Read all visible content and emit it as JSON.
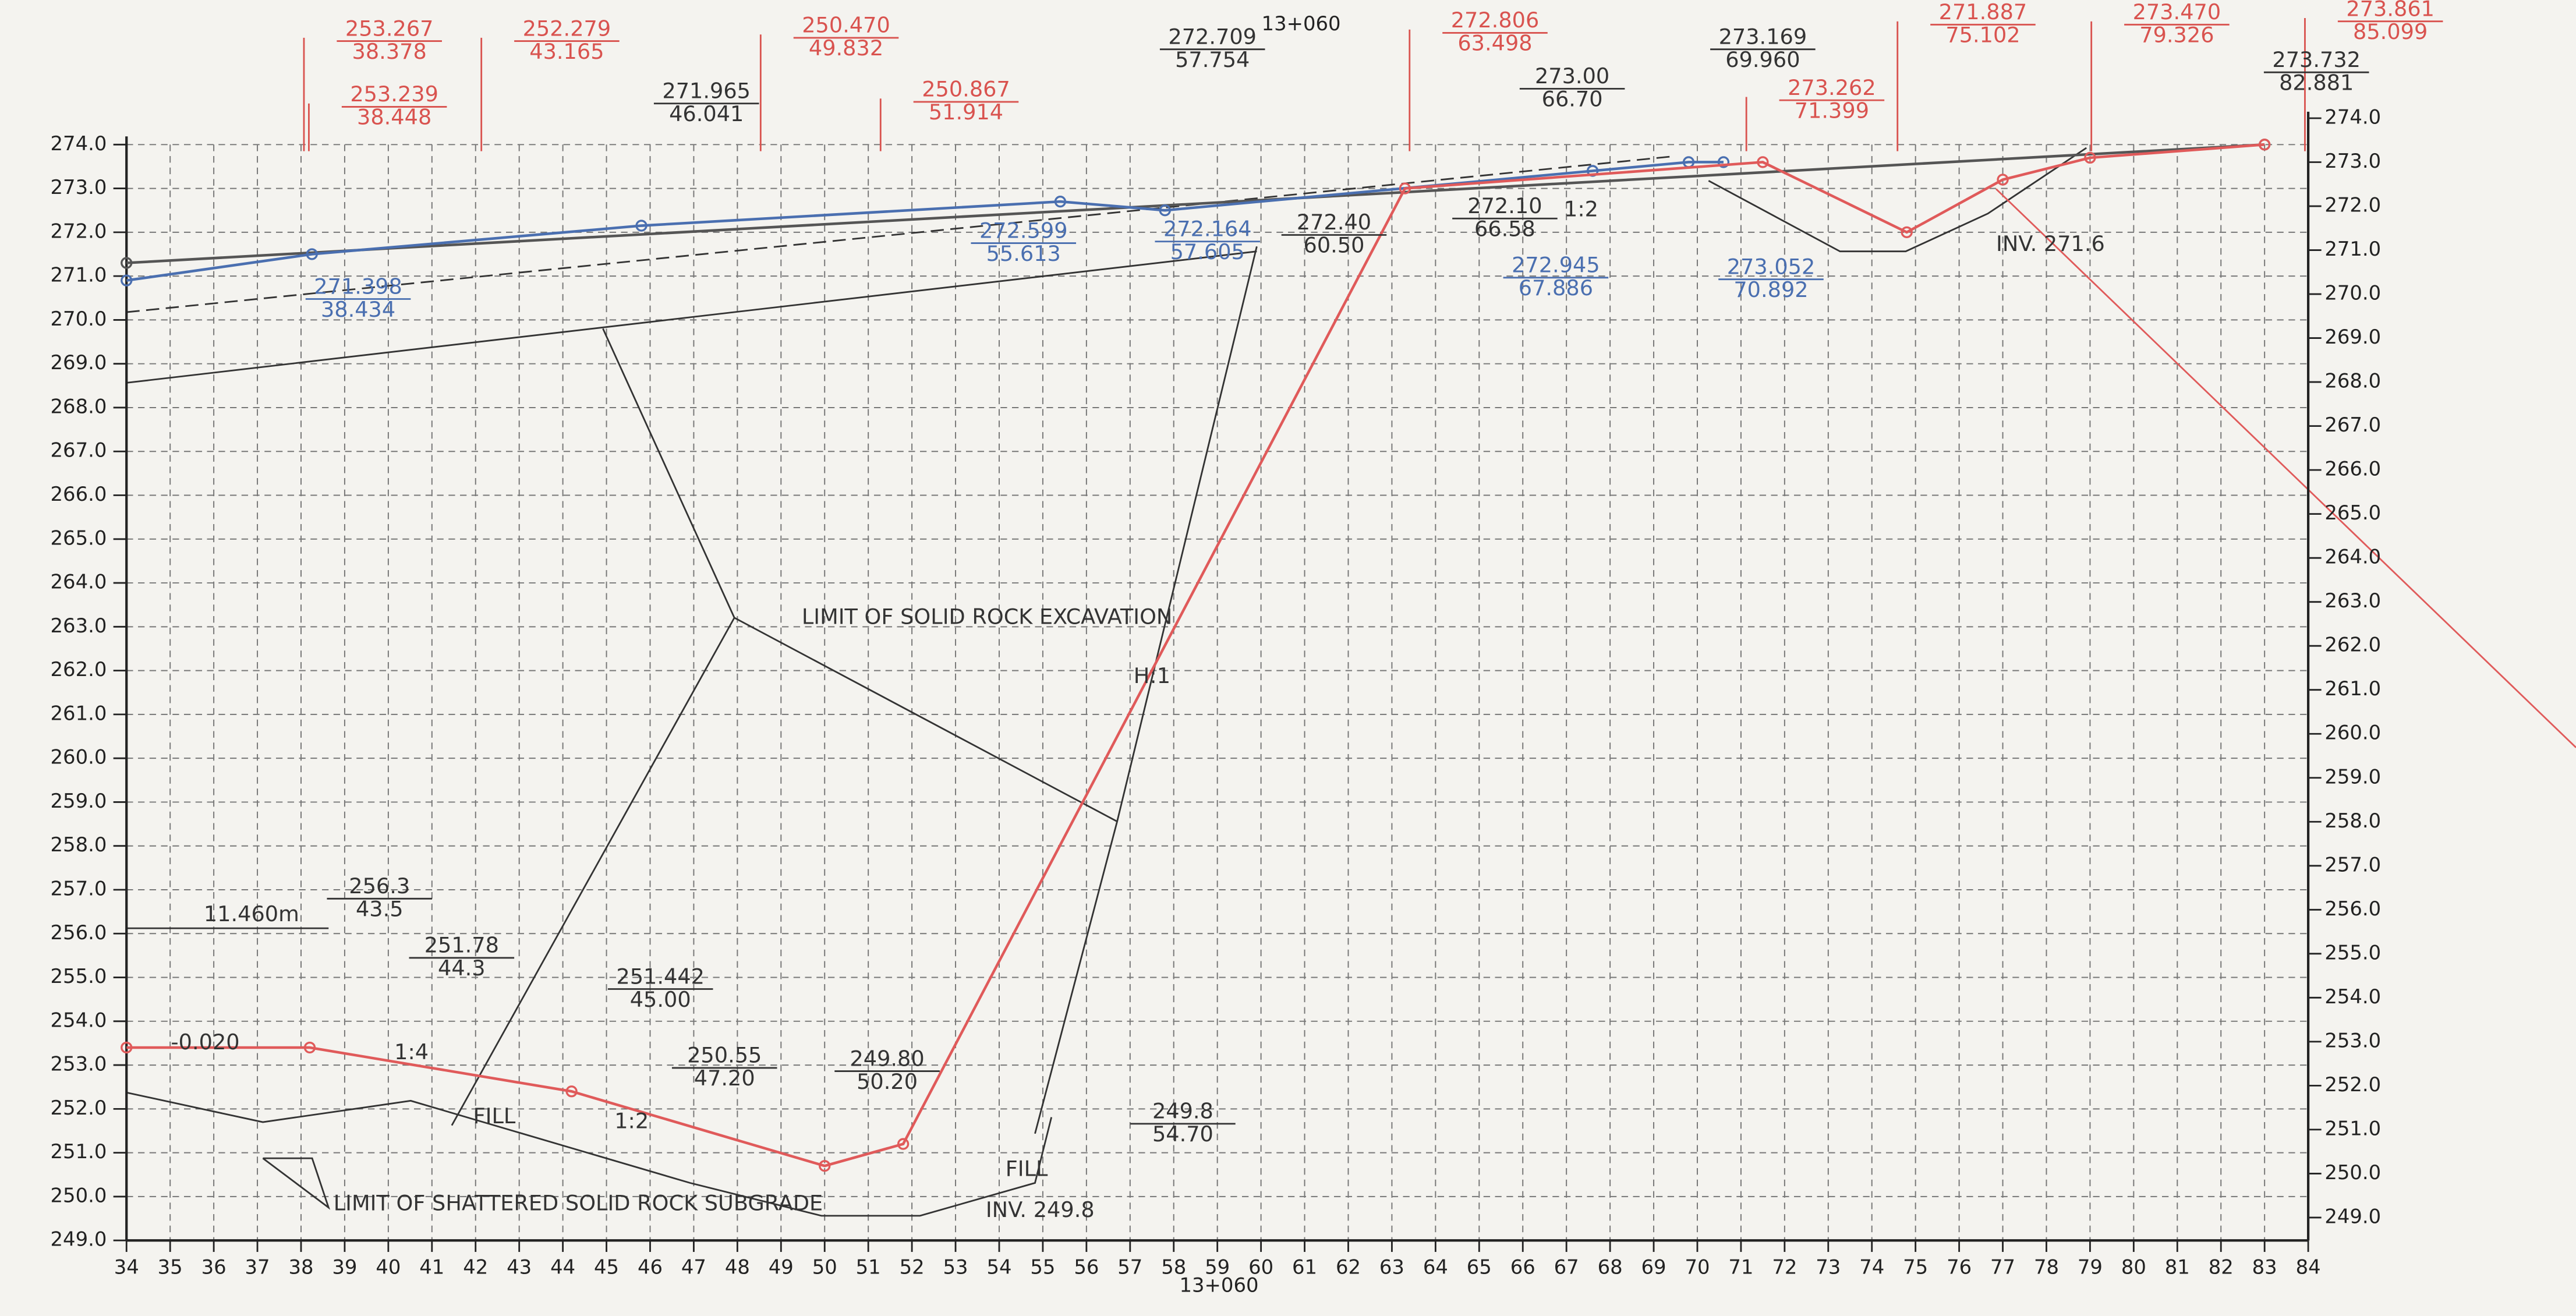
{
  "chart_data": {
    "type": "line",
    "title": "13+060",
    "xlabel": "13+060",
    "xlim": [
      34,
      84
    ],
    "xticks": [
      34,
      35,
      36,
      37,
      38,
      39,
      40,
      41,
      42,
      43,
      44,
      45,
      46,
      47,
      48,
      49,
      50,
      51,
      52,
      53,
      54,
      55,
      56,
      57,
      58,
      59,
      60,
      61,
      62,
      63,
      64,
      65,
      66,
      67,
      68,
      69,
      70,
      71,
      72,
      73,
      74,
      75,
      76,
      77,
      78,
      79,
      80,
      81,
      82,
      83,
      84
    ],
    "ylim": [
      249,
      274
    ],
    "yticks": [
      {
        "value": 249,
        "label": "249.0"
      },
      {
        "value": 250,
        "label": "250.0"
      },
      {
        "value": 251,
        "label": "251.0"
      },
      {
        "value": 252,
        "label": "252.0"
      },
      {
        "value": 253,
        "label": "253.0"
      },
      {
        "value": 254,
        "label": "254.0"
      },
      {
        "value": 255,
        "label": "255.0"
      },
      {
        "value": 256,
        "label": "256.0"
      },
      {
        "value": 257,
        "label": "257.0"
      },
      {
        "value": 258,
        "label": "258.0"
      },
      {
        "value": 259,
        "label": "259.0"
      },
      {
        "value": 260,
        "label": "260.0"
      },
      {
        "value": 261,
        "label": "261.0"
      },
      {
        "value": 262,
        "label": "262.0"
      },
      {
        "value": 263,
        "label": "263.0"
      },
      {
        "value": 264,
        "label": "264.0"
      },
      {
        "value": 265,
        "label": "265.0"
      },
      {
        "value": 266,
        "label": "266.0"
      },
      {
        "value": 267,
        "label": "267.0"
      },
      {
        "value": 268,
        "label": "268.0"
      },
      {
        "value": 269,
        "label": "269.0"
      },
      {
        "value": 270,
        "label": "270.0"
      },
      {
        "value": 271,
        "label": "271.0"
      },
      {
        "value": 272,
        "label": "272.0"
      },
      {
        "value": 273,
        "label": "273.0"
      },
      {
        "value": 274,
        "label": "274.0"
      }
    ],
    "y2lim": [
      248.48,
      273.4
    ],
    "y2ticks": [
      {
        "value": 249,
        "label": "249.0"
      },
      {
        "value": 250,
        "label": "250.0"
      },
      {
        "value": 251,
        "label": "251.0"
      },
      {
        "value": 252,
        "label": "252.0"
      },
      {
        "value": 253,
        "label": "253.0"
      },
      {
        "value": 254,
        "label": "254.0"
      },
      {
        "value": 255,
        "label": "255.0"
      },
      {
        "value": 256,
        "label": "256.0"
      },
      {
        "value": 257,
        "label": "257.0"
      },
      {
        "value": 258,
        "label": "258.0"
      },
      {
        "value": 259,
        "label": "259.0"
      },
      {
        "value": 260,
        "label": "260.0"
      },
      {
        "value": 261,
        "label": "261.0"
      },
      {
        "value": 262,
        "label": "262.0"
      },
      {
        "value": 263,
        "label": "263.0"
      },
      {
        "value": 264,
        "label": "264.0"
      },
      {
        "value": 265,
        "label": "265.0"
      },
      {
        "value": 266,
        "label": "266.0"
      },
      {
        "value": 267,
        "label": "267.0"
      },
      {
        "value": 268,
        "label": "268.0"
      },
      {
        "value": 269,
        "label": "269.0"
      },
      {
        "value": 270,
        "label": "270.0"
      },
      {
        "value": 271,
        "label": "271.0"
      },
      {
        "value": 272,
        "label": "272.0"
      },
      {
        "value": 273,
        "label": "273.0"
      },
      {
        "value": 274,
        "label": "274.0"
      }
    ],
    "grid": true,
    "series": [
      {
        "color": "#555555",
        "x": [
          34,
          83
        ],
        "values": [
          271.3,
          274.0
        ]
      },
      {
        "color": "#4a6fb0",
        "x": [
          34,
          38.25,
          45.8,
          55.4,
          57.8,
          67.6,
          69.8,
          70.6
        ],
        "values": [
          270.9,
          271.5,
          272.15,
          272.7,
          272.5,
          273.4,
          273.6,
          273.6
        ]
      },
      {
        "color": "#e05a5a",
        "x": [
          34,
          38.2,
          44.2,
          50,
          51.8,
          63.3,
          71.5,
          74.8,
          77,
          79,
          83
        ],
        "values": [
          253.4,
          253.4,
          252.4,
          250.7,
          251.2,
          273.0,
          273.6,
          272.0,
          273.2,
          273.7,
          274.0
        ]
      }
    ],
    "annotations": [
      {
        "color": "#d9534f",
        "labels": [
          {
            "top": "253.267",
            "bottom": "38.378"
          },
          {
            "top": "253.239",
            "bottom": "38.448"
          },
          {
            "top": "252.279",
            "bottom": "43.165"
          },
          {
            "top": "250.470",
            "bottom": "49.832"
          },
          {
            "top": "250.867",
            "bottom": "51.914"
          },
          {
            "top": "272.806",
            "bottom": "63.498"
          },
          {
            "top": "273.262",
            "bottom": "71.399"
          },
          {
            "top": "271.887",
            "bottom": "75.102"
          },
          {
            "top": "273.470",
            "bottom": "79.326"
          },
          {
            "top": "273.861",
            "bottom": "85.099"
          }
        ]
      },
      {
        "color": "#333333",
        "labels": [
          {
            "top": "271.965",
            "bottom": "46.041"
          },
          {
            "top": "272.709",
            "bottom": "57.754"
          },
          {
            "top": "273.00",
            "bottom": "66.70"
          },
          {
            "top": "273.169",
            "bottom": "69.960"
          },
          {
            "top": "273.732",
            "bottom": "82.881"
          },
          {
            "top": "272.40",
            "bottom": "60.50"
          },
          {
            "top": "272.10",
            "bottom": "66.58"
          },
          {
            "top": "256.3",
            "bottom": "43.5"
          },
          {
            "top": "251.78",
            "bottom": "44.3"
          },
          {
            "top": "251.442",
            "bottom": "45.00"
          },
          {
            "top": "250.55",
            "bottom": "47.20"
          },
          {
            "top": "249.80",
            "bottom": "50.20"
          },
          {
            "top": "249.8",
            "bottom": "54.70"
          }
        ]
      },
      {
        "color": "#4a6fb0",
        "labels": [
          {
            "top": "271.398",
            "bottom": "38.434"
          },
          {
            "top": "272.599",
            "bottom": "55.613"
          },
          {
            "top": "272.164",
            "bottom": "57.605"
          },
          {
            "top": "272.945",
            "bottom": "67.886"
          },
          {
            "top": "273.052",
            "bottom": "70.892"
          }
        ]
      }
    ],
    "notes": [
      "INV. 271.6",
      "LIMIT OF SOLID ROCK EXCAVATION",
      "H:1",
      "1:2",
      "11.460m",
      "-0.020",
      "1:4",
      "1:2",
      "INV. 249.8",
      "LIMIT OF SHATTERED SOLID ROCK SUBGRADE",
      "FILL",
      "FILL"
    ]
  }
}
